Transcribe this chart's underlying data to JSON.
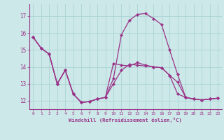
{
  "title": "",
  "xlabel": "Windchill (Refroidissement éolien,°C)",
  "ylabel": "",
  "background_color": "#cce8e8",
  "grid_color": "#aad4d4",
  "line_color": "#993388",
  "xlim": [
    -0.5,
    23.5
  ],
  "ylim": [
    11.5,
    17.7
  ],
  "xticks": [
    0,
    1,
    2,
    3,
    4,
    5,
    6,
    7,
    8,
    9,
    10,
    11,
    12,
    13,
    14,
    15,
    16,
    17,
    18,
    19,
    20,
    21,
    22,
    23
  ],
  "yticks": [
    12,
    13,
    14,
    15,
    16,
    17
  ],
  "series": [
    [
      15.75,
      15.1,
      14.75,
      13.0,
      13.8,
      12.4,
      11.9,
      11.95,
      12.1,
      12.2,
      13.0,
      13.8,
      14.15,
      14.1,
      14.05,
      14.0,
      13.95,
      13.5,
      13.1,
      12.2,
      12.1,
      12.05,
      12.1,
      12.15
    ],
    [
      15.75,
      15.1,
      14.75,
      13.0,
      13.8,
      12.4,
      11.9,
      11.95,
      12.1,
      12.2,
      13.3,
      15.9,
      16.75,
      17.1,
      17.15,
      16.85,
      16.5,
      15.0,
      13.55,
      12.2,
      12.1,
      12.05,
      12.1,
      12.15
    ],
    [
      15.75,
      15.1,
      14.75,
      13.0,
      13.8,
      12.4,
      11.9,
      11.95,
      12.1,
      12.2,
      14.2,
      14.1,
      14.05,
      14.25,
      14.1,
      14.0,
      13.95,
      13.5,
      12.4,
      12.2,
      12.1,
      12.05,
      12.1,
      12.15
    ]
  ],
  "marker": "D",
  "markersize": 2.2,
  "linewidth": 0.9
}
